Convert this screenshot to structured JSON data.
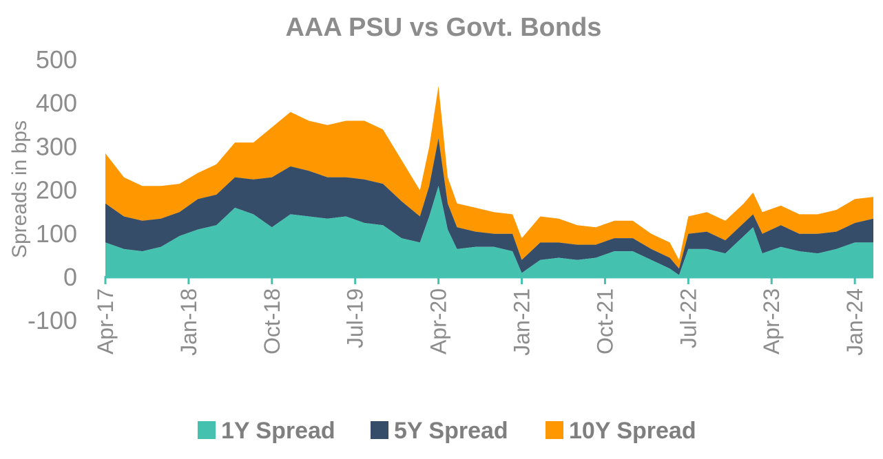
{
  "chart_data": {
    "type": "area",
    "stacked": true,
    "title": "AAA PSU vs Govt. Bonds",
    "xlabel": "",
    "ylabel": "Spreads in bps",
    "ylim": [
      -100,
      500
    ],
    "yticks": [
      500,
      400,
      300,
      200,
      100,
      0,
      -100
    ],
    "x_tick_labels": [
      "Apr-17",
      "Jan-18",
      "Oct-18",
      "Jul-19",
      "Apr-20",
      "Jan-21",
      "Oct-21",
      "Jul-22",
      "Apr-23",
      "Jan-24"
    ],
    "legend_position": "bottom",
    "grid": false,
    "x": [
      "2017-04",
      "2017-06",
      "2017-08",
      "2017-10",
      "2017-12",
      "2018-02",
      "2018-04",
      "2018-06",
      "2018-08",
      "2018-10",
      "2018-12",
      "2019-02",
      "2019-04",
      "2019-06",
      "2019-08",
      "2019-10",
      "2019-12",
      "2020-02",
      "2020-03",
      "2020-04",
      "2020-05",
      "2020-06",
      "2020-08",
      "2020-10",
      "2020-12",
      "2021-01",
      "2021-03",
      "2021-05",
      "2021-07",
      "2021-09",
      "2021-11",
      "2022-01",
      "2022-03",
      "2022-05",
      "2022-06",
      "2022-07",
      "2022-09",
      "2022-11",
      "2023-01",
      "2023-02",
      "2023-03",
      "2023-05",
      "2023-07",
      "2023-09",
      "2023-11",
      "2024-01",
      "2024-03"
    ],
    "series": [
      {
        "name": "1Y Spread",
        "color": "#45c1b0",
        "values": [
          80,
          65,
          60,
          70,
          95,
          110,
          120,
          160,
          145,
          115,
          145,
          140,
          135,
          140,
          125,
          120,
          90,
          80,
          140,
          210,
          110,
          65,
          70,
          70,
          60,
          10,
          40,
          45,
          40,
          45,
          60,
          60,
          40,
          20,
          5,
          65,
          65,
          55,
          95,
          115,
          55,
          70,
          60,
          55,
          65,
          80,
          80
        ]
      },
      {
        "name": "5Y Spread",
        "color": "#354d69",
        "values": [
          90,
          75,
          70,
          65,
          55,
          70,
          70,
          70,
          80,
          115,
          110,
          105,
          95,
          90,
          100,
          95,
          85,
          60,
          70,
          110,
          60,
          50,
          35,
          30,
          40,
          30,
          40,
          35,
          35,
          30,
          30,
          30,
          25,
          25,
          15,
          35,
          40,
          30,
          30,
          30,
          45,
          50,
          40,
          45,
          40,
          45,
          55
        ]
      },
      {
        "name": "10Y Spread",
        "color": "#ff9800",
        "values": [
          115,
          90,
          80,
          75,
          65,
          60,
          70,
          80,
          85,
          115,
          125,
          115,
          120,
          130,
          135,
          125,
          95,
          60,
          90,
          120,
          60,
          55,
          55,
          50,
          45,
          50,
          60,
          55,
          45,
          40,
          40,
          40,
          35,
          35,
          20,
          40,
          45,
          45,
          45,
          50,
          50,
          45,
          45,
          45,
          50,
          55,
          50
        ]
      }
    ]
  }
}
